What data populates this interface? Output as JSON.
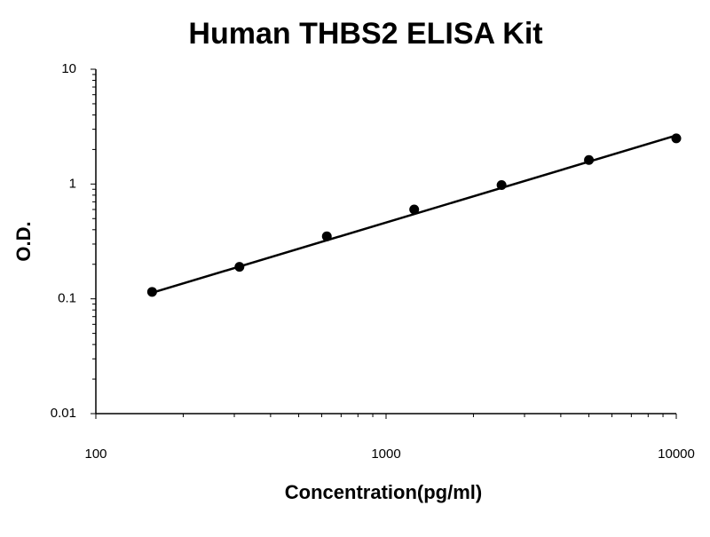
{
  "chart_data": {
    "type": "scatter",
    "title": "Human THBS2 ELISA Kit",
    "x_label": "Concentration(pg/ml)",
    "y_label": "O.D.",
    "x": [
      156.25,
      312.5,
      625,
      1250,
      2500,
      5000,
      10000
    ],
    "values": [
      0.115,
      0.19,
      0.35,
      0.6,
      0.98,
      1.62,
      2.5
    ],
    "color": "#000000",
    "trendline": {
      "x": [
        156.25,
        10000
      ],
      "values": [
        0.113,
        2.65
      ]
    },
    "xscale": "log",
    "yscale": "log",
    "minor_ticks": true,
    "xlim": [
      100,
      10000
    ],
    "ylim": [
      0.01,
      10
    ],
    "xticks": [
      100,
      1000,
      10000
    ],
    "yticks": [
      0.01,
      0.1,
      1,
      10
    ]
  }
}
